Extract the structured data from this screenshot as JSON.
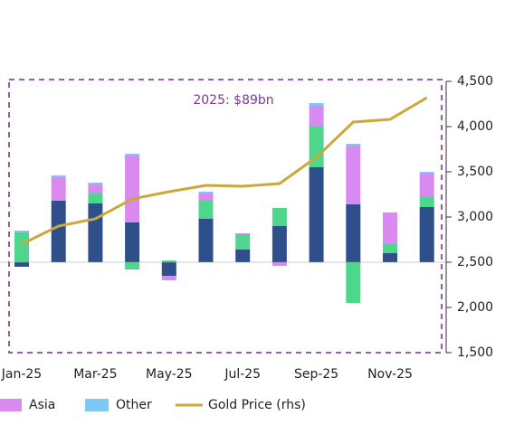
{
  "chart_data": {
    "type": "bar",
    "stacked": true,
    "annotation": "2025: $89bn",
    "categories": [
      "Jan-25",
      null,
      "Mar-25",
      null,
      "May-25",
      null,
      "Jul-25",
      null,
      "Sep-25",
      null,
      "Nov-25",
      null
    ],
    "series": [
      {
        "color": "#2e4f8a",
        "values": [
          -0.5,
          6.8,
          6.5,
          4.4,
          -1.5,
          4.8,
          1.4,
          4.0,
          10.5,
          6.4,
          1.0,
          6.1
        ]
      },
      {
        "color": "#4fd68d",
        "values": [
          3.3,
          0,
          1.1,
          -0.8,
          0.2,
          2.0,
          1.7,
          2.0,
          4.5,
          -4.5,
          1.0,
          1.1
        ]
      },
      {
        "name": "Asia",
        "color": "#d98af0",
        "values": [
          0,
          2.6,
          1.0,
          7.4,
          -0.5,
          0.8,
          0.1,
          -0.4,
          2.3,
          6.5,
          3.5,
          2.6
        ]
      },
      {
        "name": "Other",
        "color": "#7ec8f5",
        "values": [
          0.2,
          0.2,
          0.2,
          0.2,
          0,
          0.2,
          0,
          0,
          0.3,
          0.2,
          0,
          0.2
        ]
      },
      {
        "name": "Gold Price (rhs)",
        "type": "line",
        "axis": "y2",
        "color": "#c9a93c",
        "values": [
          2700,
          2900,
          2980,
          3200,
          3280,
          3350,
          3340,
          3370,
          3660,
          4050,
          4080,
          4320
        ]
      }
    ],
    "ylim": [
      -10,
      20
    ],
    "y2lim": [
      1500,
      4500
    ],
    "y2ticks": [
      {
        "value": 1500,
        "label": "1,500"
      },
      {
        "value": 2000,
        "label": "2,000"
      },
      {
        "value": 2500,
        "label": "2,500"
      },
      {
        "value": 3000,
        "label": "3,000"
      },
      {
        "value": 3500,
        "label": "3,500"
      },
      {
        "value": 4000,
        "label": "4,000"
      },
      {
        "value": 4500,
        "label": "4,500"
      }
    ]
  }
}
